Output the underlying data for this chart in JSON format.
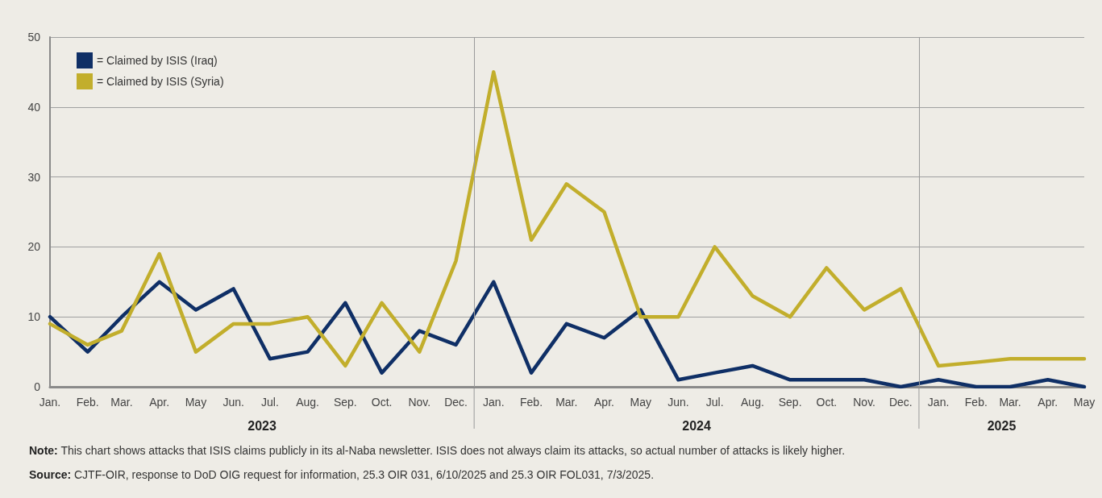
{
  "chart_data": {
    "type": "line",
    "x": [
      "2023-01",
      "2023-02",
      "2023-03",
      "2023-04",
      "2023-05",
      "2023-06",
      "2023-07",
      "2023-08",
      "2023-09",
      "2023-10",
      "2023-11",
      "2023-12",
      "2024-01",
      "2024-02",
      "2024-03",
      "2024-04",
      "2024-05",
      "2024-06",
      "2024-07",
      "2024-08",
      "2024-09",
      "2024-10",
      "2024-11",
      "2024-12",
      "2025-01",
      "2025-02",
      "2025-03",
      "2025-04",
      "2025-05"
    ],
    "series": [
      {
        "name": "= Claimed by ISIS (Iraq)",
        "color": "#0f2f66",
        "values": [
          10,
          5,
          10,
          15,
          11,
          14,
          4,
          5,
          12,
          2,
          8,
          6,
          15,
          2,
          9,
          7,
          11,
          1,
          2,
          3,
          1,
          1,
          1,
          0,
          1,
          0,
          0,
          1,
          0
        ]
      },
      {
        "name": "= Claimed by ISIS (Syria)",
        "color": "#c2ae2c",
        "values": [
          9,
          6,
          8,
          19,
          5,
          9,
          9,
          10,
          3,
          12,
          5,
          18,
          45,
          21,
          29,
          25,
          10,
          10,
          20,
          13,
          10,
          17,
          11,
          14,
          3,
          3.5,
          4,
          4,
          4
        ]
      }
    ],
    "xlim": [
      "2023-01",
      "2025-05"
    ],
    "xticks": [
      {
        "value": "2023-01",
        "label": "Jan."
      },
      {
        "value": "2023-02",
        "label": "Feb."
      },
      {
        "value": "2023-03",
        "label": "Mar."
      },
      {
        "value": "2023-04",
        "label": "Apr."
      },
      {
        "value": "2023-05",
        "label": "May"
      },
      {
        "value": "2023-06",
        "label": "Jun."
      },
      {
        "value": "2023-07",
        "label": "Jul."
      },
      {
        "value": "2023-08",
        "label": "Aug."
      },
      {
        "value": "2023-09",
        "label": "Sep."
      },
      {
        "value": "2023-10",
        "label": "Oct."
      },
      {
        "value": "2023-11",
        "label": "Nov."
      },
      {
        "value": "2023-12",
        "label": "Dec."
      },
      {
        "value": "2024-01",
        "label": "Jan."
      },
      {
        "value": "2024-02",
        "label": "Feb."
      },
      {
        "value": "2024-03",
        "label": "Mar."
      },
      {
        "value": "2024-04",
        "label": "Apr."
      },
      {
        "value": "2024-05",
        "label": "May"
      },
      {
        "value": "2024-06",
        "label": "Jun."
      },
      {
        "value": "2024-07",
        "label": "Jul."
      },
      {
        "value": "2024-08",
        "label": "Aug."
      },
      {
        "value": "2024-09",
        "label": "Sep."
      },
      {
        "value": "2024-10",
        "label": "Oct."
      },
      {
        "value": "2024-11",
        "label": "Nov."
      },
      {
        "value": "2024-12",
        "label": "Dec."
      },
      {
        "value": "2025-01",
        "label": "Jan."
      },
      {
        "value": "2025-02",
        "label": "Feb."
      },
      {
        "value": "2025-03",
        "label": "Mar."
      },
      {
        "value": "2025-04",
        "label": "Apr."
      },
      {
        "value": "2025-05",
        "label": "May"
      }
    ],
    "ylim": [
      0,
      50
    ],
    "yticks": [
      0,
      10,
      20,
      30,
      40,
      50
    ],
    "grid": "y",
    "legend": "top left",
    "marker": "none",
    "line_style": "solid",
    "ref_lines": [
      {
        "axis": "x",
        "value": "2023-12-16"
      },
      {
        "axis": "x",
        "value": "2024-12-16"
      }
    ],
    "annotations": [
      "2023",
      "2024",
      "2025",
      "Note: This chart shows attacks that ISIS claims publicly in its al-Naba newsletter. ISIS does not always claim its attacks, so actual number of attacks is likely higher.",
      "Source: CJTF-OIR, response to DoD OIG request for information, 25.3 OIR 031, 6/10/2025 and 25.3 OIR FOL031, 7/3/2025."
    ]
  }
}
